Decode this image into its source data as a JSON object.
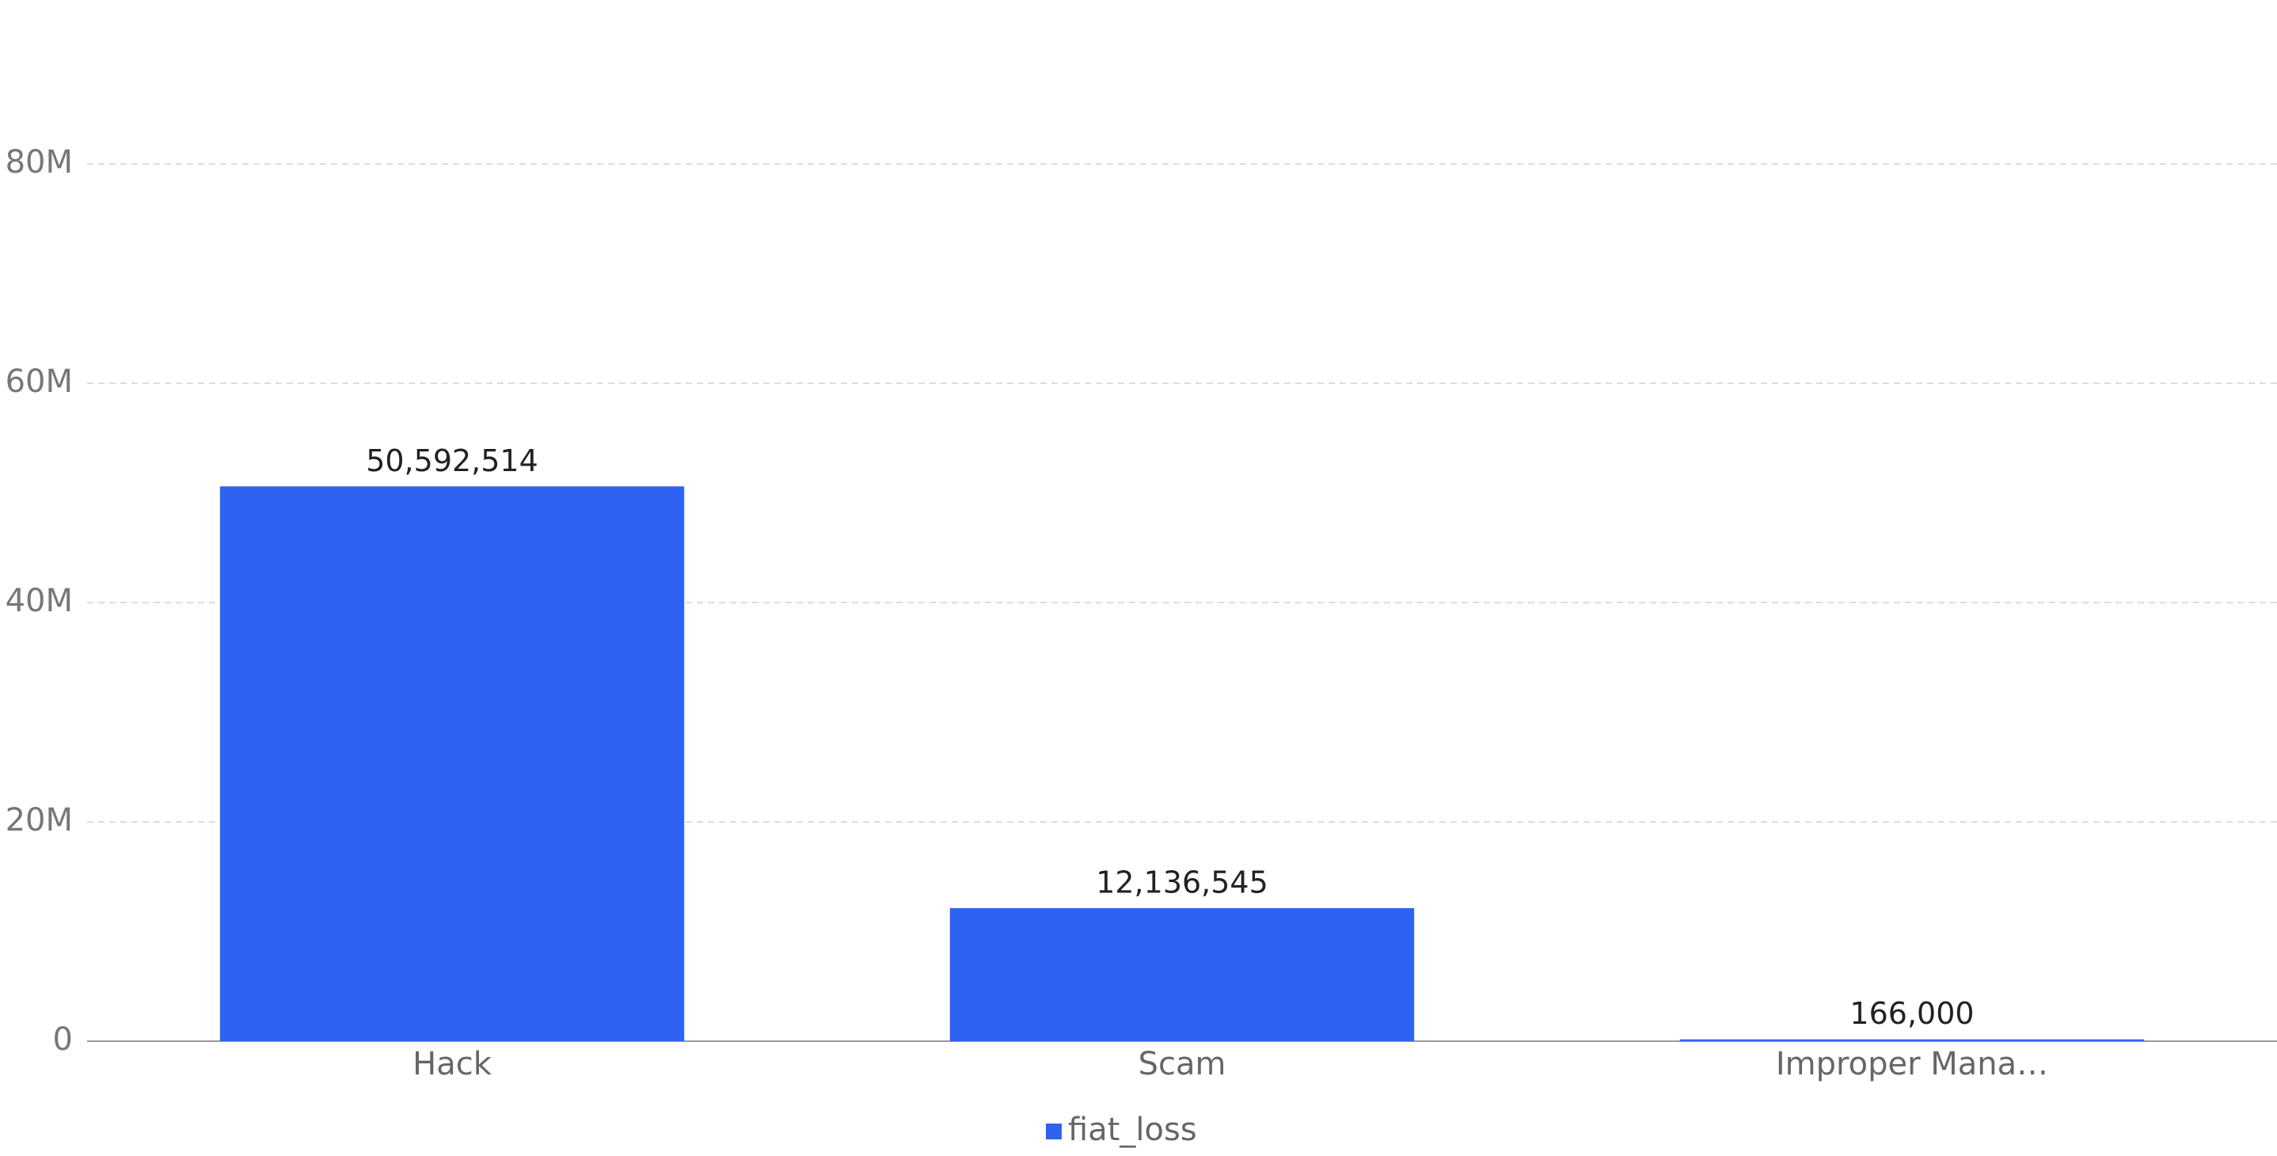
{
  "chart_data": {
    "type": "bar",
    "categories": [
      "Hack",
      "Scam",
      "Improper Mana…"
    ],
    "series": [
      {
        "name": "fiat_loss",
        "color": "#2e63f2",
        "values": [
          50592514,
          12136545,
          166000
        ],
        "value_labels": [
          "50,592,514",
          "12,136,545",
          "166,000"
        ]
      }
    ],
    "ylim": [
      0,
      80000000
    ],
    "yticks": [
      0,
      {
        "value": 20000000,
        "label": "20M"
      },
      {
        "value": 40000000,
        "label": "40M"
      },
      {
        "value": 60000000,
        "label": "60M"
      },
      {
        "value": 80000000,
        "label": "80M"
      }
    ],
    "grid": true
  }
}
